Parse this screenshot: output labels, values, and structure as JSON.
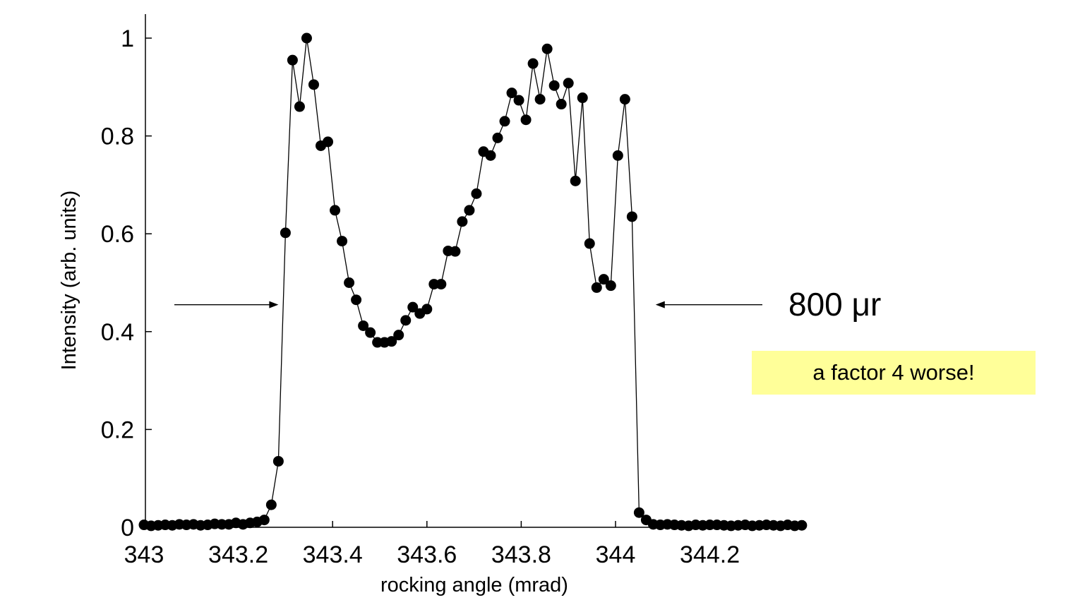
{
  "chart_data": {
    "type": "scatter",
    "xlabel": "rocking angle (mrad)",
    "ylabel": "Intensity (arb. units)",
    "xlim": [
      343.0,
      344.4
    ],
    "ylim": [
      0,
      1.05
    ],
    "x_ticks": [
      343,
      343.2,
      343.4,
      343.6,
      343.8,
      344,
      344.2
    ],
    "x_tick_labels": [
      "343",
      "343.2",
      "343.4",
      "343.6",
      "343.8",
      "344",
      "344.2"
    ],
    "y_ticks": [
      0,
      0.2,
      0.4,
      0.6,
      0.8,
      1
    ],
    "y_tick_labels": [
      "0",
      "0.2",
      "0.4",
      "0.6",
      "0.8",
      "1"
    ],
    "grid": false,
    "series": [
      {
        "marker": "filled-circle",
        "line": true,
        "color": "#000000",
        "x": [
          343.0,
          343.015,
          343.03,
          343.045,
          343.06,
          343.075,
          343.09,
          343.105,
          343.12,
          343.135,
          343.15,
          343.165,
          343.18,
          343.195,
          343.21,
          343.225,
          343.24,
          343.255,
          343.27,
          343.285,
          343.3,
          343.315,
          343.33,
          343.345,
          343.36,
          343.375,
          343.39,
          343.405,
          343.42,
          343.435,
          343.45,
          343.465,
          343.48,
          343.495,
          343.51,
          343.525,
          343.54,
          343.555,
          343.57,
          343.585,
          343.6,
          343.615,
          343.63,
          343.645,
          343.66,
          343.675,
          343.69,
          343.705,
          343.72,
          343.735,
          343.75,
          343.765,
          343.78,
          343.795,
          343.81,
          343.825,
          343.84,
          343.855,
          343.87,
          343.885,
          343.9,
          343.915,
          343.93,
          343.945,
          343.96,
          343.975,
          343.99,
          344.005,
          344.02,
          344.035,
          344.05,
          344.065,
          344.08,
          344.095,
          344.11,
          344.125,
          344.14,
          344.155,
          344.17,
          344.185,
          344.2,
          344.215,
          344.23,
          344.245,
          344.26,
          344.275,
          344.29,
          344.305,
          344.32,
          344.335,
          344.35,
          344.365,
          344.38,
          344.395
        ],
        "y": [
          0.005,
          0.003,
          0.004,
          0.005,
          0.004,
          0.006,
          0.005,
          0.006,
          0.004,
          0.005,
          0.007,
          0.006,
          0.006,
          0.009,
          0.006,
          0.009,
          0.011,
          0.015,
          0.046,
          0.135,
          0.602,
          0.955,
          0.86,
          1.0,
          0.905,
          0.78,
          0.788,
          0.648,
          0.585,
          0.5,
          0.465,
          0.412,
          0.398,
          0.378,
          0.378,
          0.38,
          0.393,
          0.423,
          0.45,
          0.437,
          0.446,
          0.497,
          0.497,
          0.565,
          0.564,
          0.625,
          0.648,
          0.682,
          0.768,
          0.76,
          0.796,
          0.83,
          0.888,
          0.873,
          0.833,
          0.948,
          0.875,
          0.978,
          0.903,
          0.865,
          0.908,
          0.708,
          0.878,
          0.58,
          0.49,
          0.507,
          0.494,
          0.76,
          0.875,
          0.635,
          0.03,
          0.015,
          0.006,
          0.005,
          0.006,
          0.005,
          0.004,
          0.003,
          0.005,
          0.004,
          0.005,
          0.005,
          0.004,
          0.003,
          0.004,
          0.005,
          0.003,
          0.004,
          0.005,
          0.004,
          0.003,
          0.005,
          0.003,
          0.004
        ]
      }
    ],
    "annotations": {
      "width_label": "800 μr",
      "note": "a factor 4 worse!",
      "arrow_level_y": 0.455,
      "arrow_left_tip_x": 343.285,
      "arrow_right_tip_x": 344.085
    }
  }
}
